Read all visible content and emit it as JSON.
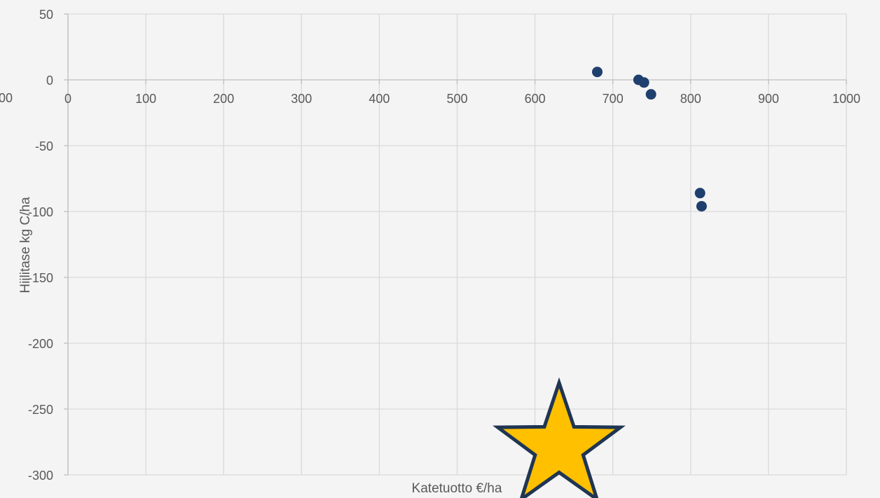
{
  "chart_data": {
    "type": "scatter",
    "xlabel": "Katetuotto €/ha",
    "ylabel": "Hiilitase kg C/ha",
    "xlim": [
      0,
      1000
    ],
    "ylim": [
      -300,
      50
    ],
    "x_ticks": [
      "0",
      "100",
      "200",
      "300",
      "400",
      "500",
      "600",
      "700",
      "800",
      "900",
      "1000"
    ],
    "y_ticks": [
      "50",
      "0",
      "-50",
      "-100",
      "-150",
      "-200",
      "-250",
      "-300"
    ],
    "partial_tick_left": "00",
    "grid": true,
    "series": [
      {
        "color": "#1f3f6e",
        "points": [
          {
            "x": 680,
            "y": 6
          },
          {
            "x": 733,
            "y": 0
          },
          {
            "x": 740,
            "y": -2
          },
          {
            "x": 749,
            "y": -11
          },
          {
            "x": 812,
            "y": -86
          },
          {
            "x": 814,
            "y": -96
          }
        ]
      }
    ],
    "annotation": {
      "shape": "star-icon",
      "x": 631,
      "y": -279,
      "fill": "#ffc000",
      "stroke": "#1f3552"
    }
  }
}
